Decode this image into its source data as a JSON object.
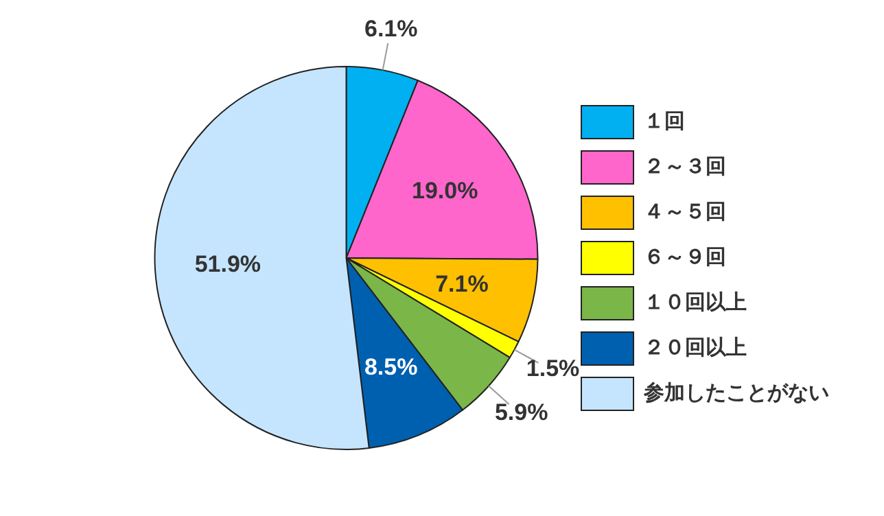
{
  "chart_data": {
    "type": "pie",
    "categories": [
      "１回",
      "２～３回",
      "４～５回",
      "６～９回",
      "１０回以上",
      "２０回以上",
      "参加したことがない"
    ],
    "values": [
      6.1,
      19.0,
      7.1,
      1.5,
      5.9,
      8.5,
      51.9
    ],
    "colors": [
      "#00b0f0",
      "#ff66cc",
      "#ffc000",
      "#ffff00",
      "#7ab648",
      "#0060b0",
      "#c5e5ff"
    ],
    "value_labels": [
      "6.1%",
      "19.0%",
      "7.1%",
      "1.5%",
      "5.9%",
      "8.5%",
      "51.9%"
    ],
    "legend": "right"
  }
}
